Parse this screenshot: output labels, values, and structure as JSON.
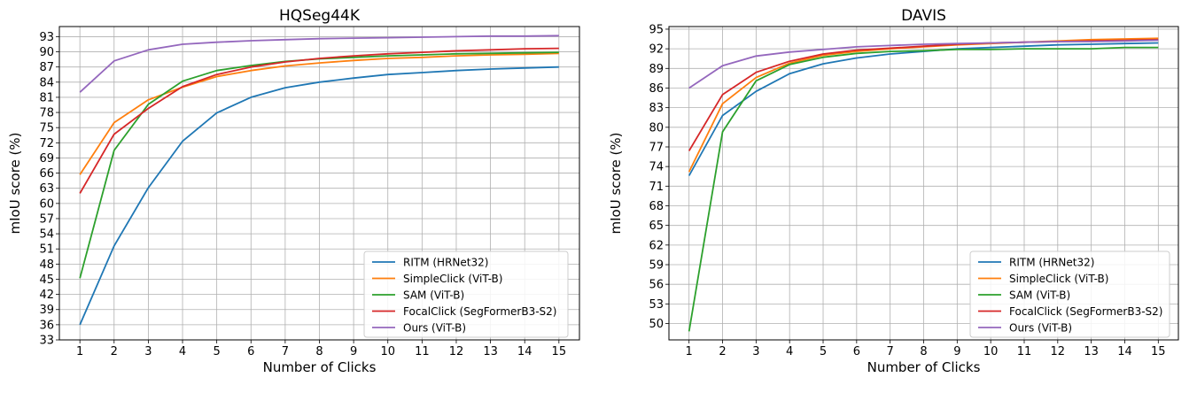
{
  "chart_data": [
    {
      "type": "line",
      "title": "HQSeg44K",
      "xlabel": "Number of Clicks",
      "ylabel": "mIoU score (%)",
      "x": [
        1,
        2,
        3,
        4,
        5,
        6,
        7,
        8,
        9,
        10,
        11,
        12,
        13,
        14,
        15
      ],
      "xlim": [
        0.4,
        15.6
      ],
      "ylim": [
        33,
        95
      ],
      "yticks": [
        33,
        36,
        39,
        42,
        45,
        48,
        51,
        54,
        57,
        60,
        63,
        66,
        69,
        72,
        75,
        78,
        81,
        84,
        87,
        90,
        93
      ],
      "grid": true,
      "legend_position": "lower right",
      "series": [
        {
          "name": "RITM (HRNet32)",
          "color": "#1f77b4",
          "values": [
            36.0,
            51.6,
            63.1,
            72.3,
            77.9,
            81.0,
            82.9,
            84.0,
            84.8,
            85.5,
            85.9,
            86.3,
            86.6,
            86.8,
            87.0
          ]
        },
        {
          "name": "SimpleClick (ViT-B)",
          "color": "#ff7f0e",
          "values": [
            65.7,
            76.0,
            80.5,
            83.0,
            85.1,
            86.3,
            87.2,
            87.8,
            88.3,
            88.7,
            88.9,
            89.2,
            89.4,
            89.5,
            89.7
          ]
        },
        {
          "name": "SAM (ViT-B)",
          "color": "#2ca02c",
          "values": [
            45.2,
            70.5,
            79.6,
            84.2,
            86.3,
            87.3,
            88.1,
            88.6,
            88.9,
            89.2,
            89.4,
            89.6,
            89.7,
            89.8,
            89.9
          ]
        },
        {
          "name": "FocalClick (SegFormerB3-S2)",
          "color": "#d62728",
          "values": [
            62.0,
            73.7,
            78.8,
            83.1,
            85.5,
            87.0,
            88.0,
            88.7,
            89.2,
            89.6,
            89.9,
            90.2,
            90.4,
            90.6,
            90.7
          ]
        },
        {
          "name": "Ours (ViT-B)",
          "color": "#9467bd",
          "values": [
            82.0,
            88.2,
            90.4,
            91.5,
            91.9,
            92.2,
            92.4,
            92.6,
            92.7,
            92.8,
            92.9,
            93.0,
            93.1,
            93.1,
            93.2
          ]
        }
      ]
    },
    {
      "type": "line",
      "title": "DAVIS",
      "xlabel": "Number of Clicks",
      "ylabel": "mIoU score (%)",
      "x": [
        1,
        2,
        3,
        4,
        5,
        6,
        7,
        8,
        9,
        10,
        11,
        12,
        13,
        14,
        15
      ],
      "xlim": [
        0.4,
        15.6
      ],
      "ylim": [
        47.5,
        95.4
      ],
      "yticks": [
        50,
        53,
        56,
        59,
        62,
        65,
        68,
        71,
        74,
        77,
        80,
        83,
        86,
        89,
        92,
        95
      ],
      "grid": true,
      "legend_position": "lower right",
      "series": [
        {
          "name": "RITM (HRNet32)",
          "color": "#1f77b4",
          "values": [
            72.6,
            81.8,
            85.5,
            88.2,
            89.7,
            90.6,
            91.2,
            91.6,
            92.0,
            92.2,
            92.4,
            92.6,
            92.7,
            92.8,
            92.9
          ]
        },
        {
          "name": "SimpleClick (ViT-B)",
          "color": "#ff7f0e",
          "values": [
            73.2,
            83.6,
            87.6,
            89.8,
            91.0,
            91.6,
            92.0,
            92.3,
            92.6,
            92.8,
            93.0,
            93.2,
            93.4,
            93.5,
            93.6
          ]
        },
        {
          "name": "SAM (ViT-B)",
          "color": "#2ca02c",
          "values": [
            48.8,
            79.3,
            87.1,
            89.6,
            90.7,
            91.3,
            91.6,
            91.7,
            91.9,
            91.9,
            92.0,
            92.0,
            92.0,
            92.2,
            92.2
          ]
        },
        {
          "name": "FocalClick (SegFormerB3-S2)",
          "color": "#d62728",
          "values": [
            76.4,
            85.0,
            88.4,
            90.1,
            91.2,
            91.8,
            92.1,
            92.4,
            92.7,
            92.9,
            93.0,
            93.1,
            93.2,
            93.3,
            93.4
          ]
        },
        {
          "name": "Ours (ViT-B)",
          "color": "#9467bd",
          "values": [
            86.0,
            89.4,
            90.9,
            91.5,
            91.9,
            92.3,
            92.5,
            92.7,
            92.8,
            92.9,
            93.0,
            93.1,
            93.1,
            93.2,
            93.3
          ]
        }
      ]
    }
  ]
}
